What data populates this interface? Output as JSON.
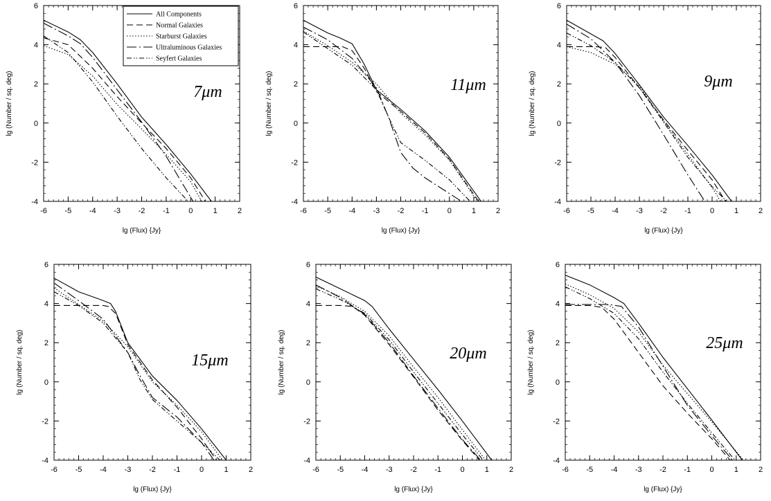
{
  "figure": {
    "x_axis_label": "lg (Flux)  {Jy}",
    "y_axis_label": "lg (Number / sq. deg)",
    "legend_entries": [
      {
        "key": "all",
        "label": "All Components",
        "dash": ""
      },
      {
        "key": "normal",
        "label": "Normal Galaxies",
        "dash": "9,5"
      },
      {
        "key": "starburst",
        "label": "Starburst Galaxies",
        "dash": "1.5,2.5"
      },
      {
        "key": "ulirg",
        "label": "Ultraluminous Galaxies",
        "dash": "14,4,2,4"
      },
      {
        "key": "seyfert",
        "label": "Seyfert Galaxies",
        "dash": "7,3,1.5,2,1.5,3"
      }
    ],
    "line_color": "#000000"
  },
  "chart_data": [
    {
      "type": "line",
      "wavelength_label": "7μm",
      "xlim": [
        -6,
        2
      ],
      "ylim": [
        -4,
        6
      ],
      "xticks": [
        -6,
        -5,
        -4,
        -3,
        -2,
        -1,
        0,
        1,
        2
      ],
      "yticks": [
        -4,
        -2,
        0,
        2,
        4,
        6
      ],
      "legend": true,
      "series": [
        {
          "key": "all",
          "x": [
            -6,
            -5,
            -4.5,
            -4,
            -3,
            -2,
            -1,
            0,
            0.85
          ],
          "y": [
            5.25,
            4.65,
            4.25,
            3.6,
            2.0,
            0.3,
            -1.1,
            -2.6,
            -4.0
          ]
        },
        {
          "key": "normal",
          "x": [
            -6,
            -5,
            -4,
            -3,
            -2,
            -1,
            0,
            0.6
          ],
          "y": [
            4.35,
            4.0,
            2.8,
            1.35,
            0.0,
            -1.3,
            -2.8,
            -4.0
          ]
        },
        {
          "key": "starburst",
          "x": [
            -6,
            -5,
            -4,
            -3,
            -2,
            -1,
            0,
            0.45
          ],
          "y": [
            3.95,
            3.5,
            2.4,
            0.95,
            -0.3,
            -1.6,
            -3.0,
            -4.0
          ]
        },
        {
          "key": "ulirg",
          "x": [
            -6,
            -5,
            -4.5,
            -4,
            -3,
            -2,
            -1,
            -0.5,
            0.1
          ],
          "y": [
            5.1,
            4.45,
            4.05,
            3.35,
            1.7,
            0.05,
            -1.7,
            -2.75,
            -4.0
          ]
        },
        {
          "key": "seyfert",
          "x": [
            -6,
            -5,
            -4,
            -3,
            -2,
            -1,
            -0.1
          ],
          "y": [
            4.45,
            3.6,
            2.1,
            0.35,
            -1.3,
            -2.8,
            -4.0
          ]
        }
      ]
    },
    {
      "type": "line",
      "wavelength_label": "11μm",
      "xlim": [
        -6,
        2
      ],
      "ylim": [
        -4,
        6
      ],
      "xticks": [
        -6,
        -5,
        -4,
        -3,
        -2,
        -1,
        0,
        1,
        2
      ],
      "yticks": [
        -4,
        -2,
        0,
        2,
        4,
        6
      ],
      "legend": false,
      "series": [
        {
          "key": "all",
          "x": [
            -6,
            -5,
            -4.5,
            -4,
            -3.5,
            -3,
            -2,
            -1,
            0,
            1.3
          ],
          "y": [
            5.25,
            4.6,
            4.35,
            4.05,
            3.0,
            1.7,
            0.7,
            -0.4,
            -1.75,
            -4.0
          ]
        },
        {
          "key": "normal",
          "x": [
            -6,
            -5.5,
            -5,
            -4.4,
            -4,
            -3.5,
            -3,
            -2,
            -1,
            0,
            1.2
          ],
          "y": [
            3.9,
            3.9,
            3.9,
            3.9,
            3.7,
            2.8,
            1.6,
            0.6,
            -0.5,
            -1.85,
            -4.0
          ]
        },
        {
          "key": "starburst",
          "x": [
            -6,
            -5,
            -4,
            -3,
            -2,
            -1,
            0,
            1.15
          ],
          "y": [
            4.7,
            3.95,
            3.1,
            2.0,
            0.5,
            -0.6,
            -1.9,
            -4.0
          ]
        },
        {
          "key": "ulirg",
          "x": [
            -6,
            -5,
            -4,
            -3,
            -2.5,
            -2,
            -1.5,
            -1,
            0,
            0.5
          ],
          "y": [
            4.9,
            4.25,
            3.3,
            1.8,
            0.3,
            -1.5,
            -2.3,
            -2.8,
            -3.6,
            -4.0
          ]
        },
        {
          "key": "seyfert",
          "x": [
            -6,
            -5,
            -4,
            -3,
            -2.5,
            -2,
            -1,
            0,
            0.85
          ],
          "y": [
            4.65,
            3.8,
            2.95,
            1.7,
            0.3,
            -1.0,
            -1.9,
            -2.9,
            -4.0
          ]
        }
      ]
    },
    {
      "type": "line",
      "wavelength_label": "9μm",
      "xlim": [
        -6,
        2
      ],
      "ylim": [
        -4,
        6
      ],
      "xticks": [
        -6,
        -5,
        -4,
        -3,
        -2,
        -1,
        0,
        1,
        2
      ],
      "yticks": [
        -4,
        -2,
        0,
        2,
        4,
        6
      ],
      "legend": false,
      "series": [
        {
          "key": "all",
          "x": [
            -6,
            -5,
            -4.5,
            -4,
            -3,
            -2,
            -1,
            0,
            0.8
          ],
          "y": [
            5.25,
            4.55,
            4.2,
            3.55,
            1.95,
            0.3,
            -1.15,
            -2.65,
            -4.0
          ]
        },
        {
          "key": "normal",
          "x": [
            -6,
            -5.5,
            -4.8,
            -4.4,
            -4,
            -3,
            -2,
            -1,
            0,
            0.55
          ],
          "y": [
            3.9,
            3.9,
            3.9,
            3.85,
            3.35,
            1.8,
            0.15,
            -1.4,
            -2.9,
            -4.0
          ]
        },
        {
          "key": "starburst",
          "x": [
            -6,
            -5,
            -4,
            -3,
            -2,
            -1,
            0,
            0.35
          ],
          "y": [
            3.9,
            3.6,
            3.0,
            1.9,
            0.1,
            -1.6,
            -3.3,
            -4.0
          ]
        },
        {
          "key": "ulirg",
          "x": [
            -6,
            -5,
            -4,
            -3,
            -2,
            -1,
            -0.3
          ],
          "y": [
            5.05,
            4.3,
            3.1,
            1.4,
            -0.6,
            -2.65,
            -4.0
          ]
        },
        {
          "key": "seyfert",
          "x": [
            -6,
            -5,
            -4,
            -3,
            -2,
            -1,
            0,
            0.6
          ],
          "y": [
            4.6,
            3.95,
            3.1,
            1.8,
            0.05,
            -1.75,
            -3.25,
            -4.0
          ]
        }
      ]
    },
    {
      "type": "line",
      "wavelength_label": "15μm",
      "xlim": [
        -6,
        2
      ],
      "ylim": [
        -4,
        6
      ],
      "xticks": [
        -6,
        -5,
        -4,
        -3,
        -2,
        -1,
        0,
        1,
        2
      ],
      "yticks": [
        -4,
        -2,
        0,
        2,
        4,
        6
      ],
      "legend": false,
      "series": [
        {
          "key": "all",
          "x": [
            -6,
            -5,
            -4,
            -3.7,
            -3.5,
            -3,
            -2,
            -1,
            0,
            1.0
          ],
          "y": [
            5.3,
            4.6,
            4.15,
            4.0,
            3.6,
            2.0,
            0.3,
            -0.95,
            -2.4,
            -4.0
          ]
        },
        {
          "key": "normal",
          "x": [
            -6,
            -5,
            -4.5,
            -4,
            -3.8,
            -3.5,
            -3,
            -2,
            -1,
            0,
            0.6
          ],
          "y": [
            3.9,
            3.9,
            3.9,
            3.9,
            3.85,
            3.5,
            1.9,
            0.1,
            -1.3,
            -2.9,
            -4.0
          ]
        },
        {
          "key": "starburst",
          "x": [
            -6,
            -5,
            -4,
            -3,
            -2,
            -1,
            0,
            0.85
          ],
          "y": [
            4.8,
            3.95,
            3.1,
            1.8,
            0.0,
            -1.2,
            -2.55,
            -4.0
          ]
        },
        {
          "key": "ulirg",
          "x": [
            -6,
            -5,
            -4,
            -3,
            -2.5,
            -2,
            -1,
            0,
            0.5
          ],
          "y": [
            5.05,
            4.15,
            3.2,
            1.5,
            0.3,
            -0.8,
            -1.8,
            -3.1,
            -4.0
          ]
        },
        {
          "key": "seyfert",
          "x": [
            -6,
            -5,
            -4,
            -3,
            -2.5,
            -2,
            -1,
            0,
            0.75
          ],
          "y": [
            4.6,
            3.9,
            3.0,
            1.5,
            0.1,
            -0.9,
            -2.0,
            -3.1,
            -4.0
          ]
        }
      ]
    },
    {
      "type": "line",
      "wavelength_label": "20μm",
      "xlim": [
        -6,
        2
      ],
      "ylim": [
        -4,
        6
      ],
      "xticks": [
        -6,
        -5,
        -4,
        -3,
        -2,
        -1,
        0,
        1,
        2
      ],
      "yticks": [
        -4,
        -2,
        0,
        2,
        4,
        6
      ],
      "legend": false,
      "series": [
        {
          "key": "all",
          "x": [
            -6,
            -5,
            -4,
            -3.7,
            -3,
            -2,
            -1,
            0,
            1.2
          ],
          "y": [
            5.35,
            4.75,
            4.15,
            3.85,
            2.7,
            1.15,
            -0.4,
            -2.0,
            -4.0
          ]
        },
        {
          "key": "normal",
          "x": [
            -6,
            -5.5,
            -5,
            -4.5,
            -4,
            -3,
            -2,
            -1,
            0,
            0.7
          ],
          "y": [
            3.9,
            3.9,
            3.9,
            3.85,
            3.4,
            1.9,
            0.25,
            -1.45,
            -3.0,
            -4.0
          ]
        },
        {
          "key": "starburst",
          "x": [
            -6,
            -5,
            -4,
            -3,
            -2,
            -1,
            0,
            0.95
          ],
          "y": [
            4.9,
            4.35,
            3.6,
            2.35,
            0.75,
            -0.8,
            -2.45,
            -4.0
          ]
        },
        {
          "key": "ulirg",
          "x": [
            -6,
            -5,
            -4,
            -3,
            -2,
            -1,
            0,
            0.75
          ],
          "y": [
            4.95,
            4.3,
            3.45,
            2.0,
            0.3,
            -1.35,
            -2.95,
            -4.0
          ]
        },
        {
          "key": "seyfert",
          "x": [
            -6,
            -5,
            -4,
            -3,
            -2,
            -1,
            0,
            0.85
          ],
          "y": [
            4.75,
            4.2,
            3.5,
            2.15,
            0.5,
            -1.1,
            -2.7,
            -4.0
          ]
        }
      ]
    },
    {
      "type": "line",
      "wavelength_label": "25μm",
      "xlim": [
        -6,
        2
      ],
      "ylim": [
        -4,
        6
      ],
      "xticks": [
        -6,
        -5,
        -4,
        -3,
        -2,
        -1,
        0,
        1,
        2
      ],
      "yticks": [
        -4,
        -2,
        0,
        2,
        4,
        6
      ],
      "legend": false,
      "series": [
        {
          "key": "all",
          "x": [
            -6,
            -5,
            -4,
            -3.6,
            -3,
            -2,
            -1,
            0,
            1.25
          ],
          "y": [
            5.45,
            4.95,
            4.3,
            4.0,
            3.0,
            1.25,
            -0.35,
            -1.95,
            -4.0
          ]
        },
        {
          "key": "normal",
          "x": [
            -6,
            -5,
            -4.5,
            -4,
            -3,
            -2,
            -1,
            0,
            0.75
          ],
          "y": [
            3.9,
            3.9,
            3.8,
            3.2,
            1.5,
            -0.2,
            -1.6,
            -2.9,
            -4.0
          ]
        },
        {
          "key": "starburst",
          "x": [
            -6,
            -5,
            -4,
            -3,
            -2,
            -1,
            0,
            1.3
          ],
          "y": [
            5.0,
            4.45,
            3.75,
            2.55,
            0.85,
            -0.6,
            -2.05,
            -4.0
          ]
        },
        {
          "key": "ulirg",
          "x": [
            -6,
            -5,
            -4.2,
            -3.7,
            -3,
            -2,
            -1,
            0,
            0.85
          ],
          "y": [
            3.95,
            3.95,
            3.95,
            3.85,
            2.8,
            0.8,
            -1.2,
            -2.75,
            -4.0
          ]
        },
        {
          "key": "seyfert",
          "x": [
            -6,
            -5,
            -4,
            -3,
            -2,
            -1,
            0,
            0.95
          ],
          "y": [
            4.85,
            4.25,
            3.5,
            2.2,
            0.5,
            -1.1,
            -2.6,
            -4.0
          ]
        }
      ]
    }
  ]
}
